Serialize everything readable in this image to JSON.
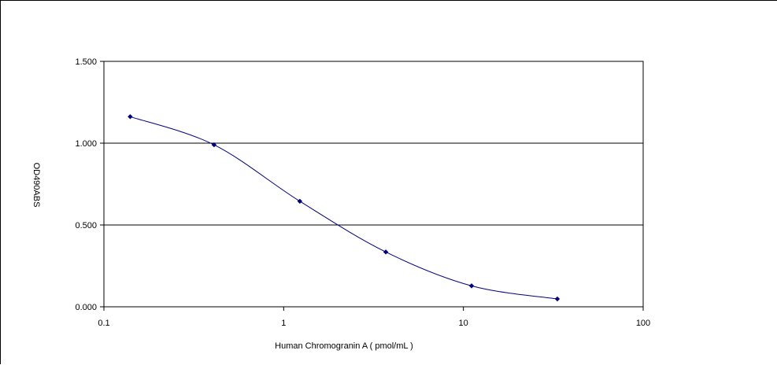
{
  "chart_data": {
    "type": "line",
    "x_scale": "log",
    "xlabel": "Human Chromogranin A ( pmol/mL )",
    "ylabel": "OD490ABS",
    "xlim": [
      0.1,
      100
    ],
    "ylim": [
      0,
      1.5
    ],
    "x_tick_labels": [
      "0.1",
      "1",
      "10",
      "100"
    ],
    "x_ticks": [
      0.1,
      1,
      10,
      100
    ],
    "y_tick_labels": [
      "0.000",
      "0.500",
      "1.000",
      "1.500"
    ],
    "y_ticks": [
      0,
      0.5,
      1.0,
      1.5
    ],
    "horizontal_grid": true,
    "legend": "none",
    "series": [
      {
        "color": "#000080",
        "marker": "diamond",
        "smooth": true,
        "x": [
          0.14,
          0.41,
          1.23,
          3.7,
          11.1,
          33.3
        ],
        "y": [
          1.162,
          0.99,
          0.645,
          0.335,
          0.128,
          0.048
        ]
      }
    ]
  }
}
